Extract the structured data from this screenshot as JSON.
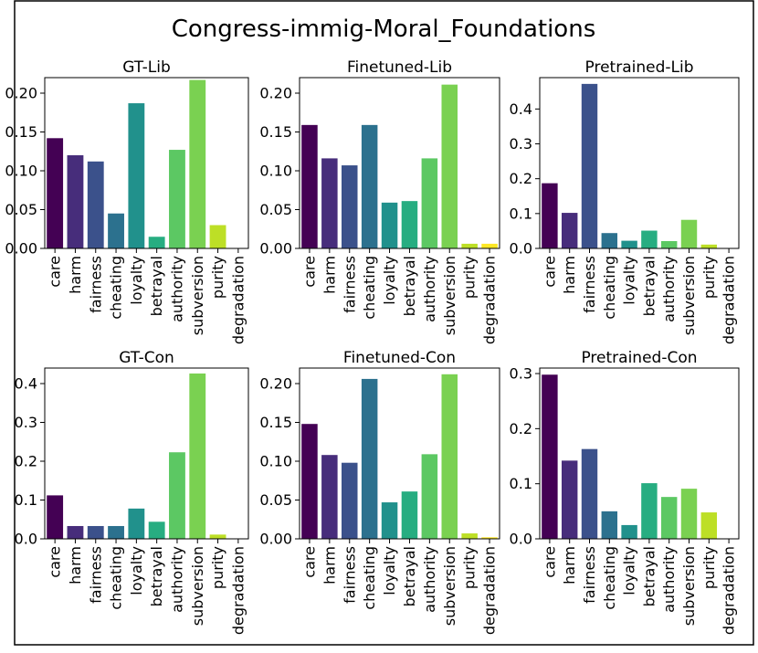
{
  "chart_data": {
    "title": "Congress-immig-Moral_Foundations",
    "type": "bar",
    "categories": [
      "care",
      "harm",
      "fairness",
      "cheating",
      "loyalty",
      "betrayal",
      "authority",
      "subversion",
      "purity",
      "degradation"
    ],
    "colors": [
      "#440154",
      "#472d7b",
      "#3b518b",
      "#2c718e",
      "#21918c",
      "#27ad81",
      "#5cc863",
      "#7ad151",
      "#bddf26",
      "#fde725"
    ],
    "panels": [
      {
        "title": "GT-Lib",
        "values": [
          0.142,
          0.12,
          0.112,
          0.045,
          0.187,
          0.015,
          0.127,
          0.217,
          0.03,
          0.0
        ],
        "ylim": [
          0,
          0.22
        ],
        "yticks": [
          0.0,
          0.05,
          0.1,
          0.15,
          0.2
        ],
        "yticklabels": [
          "0.00",
          "0.05",
          "0.10",
          "0.15",
          "0.20"
        ]
      },
      {
        "title": "Finetuned-Lib",
        "values": [
          0.159,
          0.116,
          0.107,
          0.159,
          0.059,
          0.061,
          0.116,
          0.211,
          0.006,
          0.006
        ],
        "ylim": [
          0,
          0.22
        ],
        "yticks": [
          0.0,
          0.05,
          0.1,
          0.15,
          0.2
        ],
        "yticklabels": [
          "0.00",
          "0.05",
          "0.10",
          "0.15",
          "0.20"
        ]
      },
      {
        "title": "Pretrained-Lib",
        "values": [
          0.187,
          0.102,
          0.472,
          0.044,
          0.022,
          0.051,
          0.021,
          0.082,
          0.011,
          0.0
        ],
        "ylim": [
          0,
          0.49
        ],
        "yticks": [
          0.0,
          0.1,
          0.2,
          0.3,
          0.4
        ],
        "yticklabels": [
          "0.0",
          "0.1",
          "0.2",
          "0.3",
          "0.4"
        ]
      },
      {
        "title": "GT-Con",
        "values": [
          0.112,
          0.033,
          0.033,
          0.033,
          0.078,
          0.044,
          0.223,
          0.426,
          0.011,
          0.0
        ],
        "ylim": [
          0,
          0.44
        ],
        "yticks": [
          0.0,
          0.1,
          0.2,
          0.3,
          0.4
        ],
        "yticklabels": [
          "0.0",
          "0.1",
          "0.2",
          "0.3",
          "0.4"
        ]
      },
      {
        "title": "Finetuned-Con",
        "values": [
          0.148,
          0.108,
          0.098,
          0.206,
          0.047,
          0.061,
          0.109,
          0.212,
          0.007,
          0.002
        ],
        "ylim": [
          0,
          0.22
        ],
        "yticks": [
          0.0,
          0.05,
          0.1,
          0.15,
          0.2
        ],
        "yticklabels": [
          "0.00",
          "0.05",
          "0.10",
          "0.15",
          "0.20"
        ]
      },
      {
        "title": "Pretrained-Con",
        "values": [
          0.298,
          0.142,
          0.163,
          0.05,
          0.025,
          0.101,
          0.076,
          0.091,
          0.048,
          0.0
        ],
        "ylim": [
          0,
          0.31
        ],
        "yticks": [
          0.0,
          0.1,
          0.2,
          0.3
        ],
        "yticklabels": [
          "0.0",
          "0.1",
          "0.2",
          "0.3"
        ]
      }
    ]
  }
}
